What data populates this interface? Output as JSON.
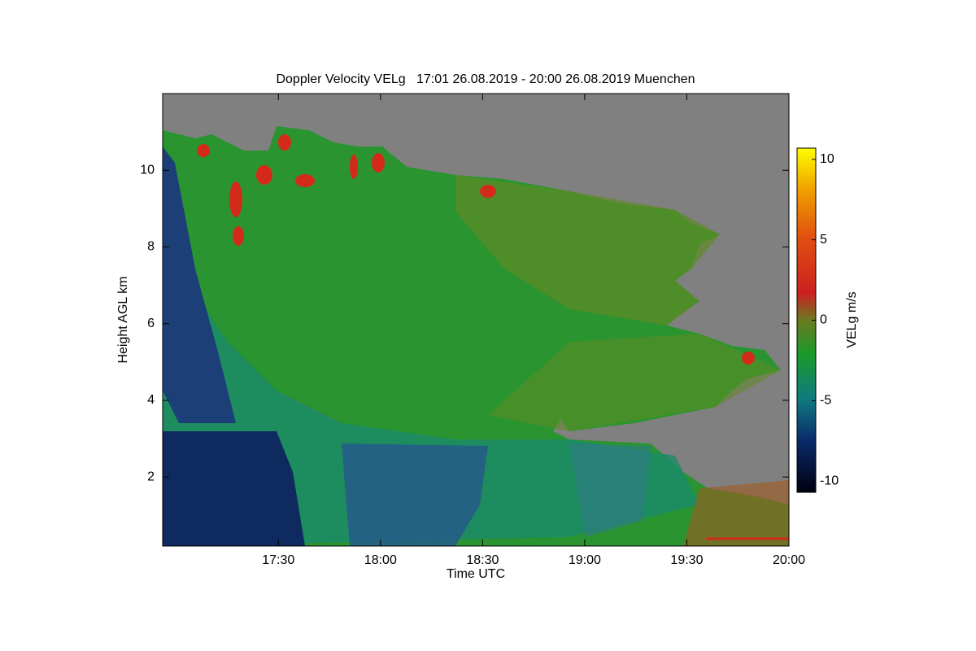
{
  "chart_data": {
    "type": "heatmap",
    "title": "Doppler Velocity VELg   17:01 26.08.2019 - 20:00 26.08.2019 Muenchen",
    "xlabel": "Time UTC",
    "ylabel": "Height AGL km",
    "xlim": [
      1016,
      1200
    ],
    "xticks": [
      {
        "value": 1050,
        "label": "17:30"
      },
      {
        "value": 1080,
        "label": "18:00"
      },
      {
        "value": 1110,
        "label": "18:30"
      },
      {
        "value": 1140,
        "label": "19:00"
      },
      {
        "value": 1170,
        "label": "19:30"
      },
      {
        "value": 1200,
        "label": "20:00"
      }
    ],
    "ylim": [
      0.2,
      12
    ],
    "yticks": [
      2,
      4,
      6,
      8,
      10
    ],
    "colorbar": {
      "label": "VELg m/s",
      "lim": [
        -10.7,
        10.7
      ],
      "ticks": [
        10,
        5,
        0,
        -5,
        -10
      ]
    }
  }
}
